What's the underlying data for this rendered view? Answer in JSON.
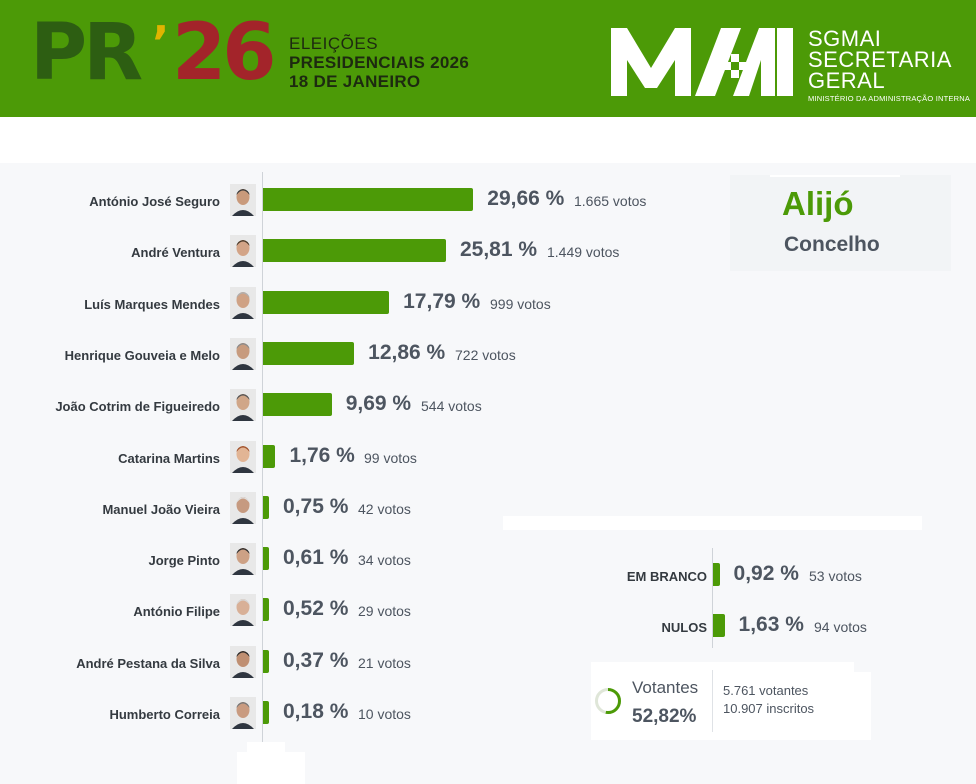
{
  "header": {
    "logo_text": "PR",
    "logo_year": "26",
    "election_line1": "ELEIÇÕES",
    "election_line2": "PRESIDENCIAIS 2026",
    "election_line3": "18 DE JANEIRO",
    "org_line1": "SGMAI",
    "org_line2": "SECRETARIA",
    "org_line3": "GERAL",
    "org_line4": "MINISTÉRIO DA ADMINISTRAÇÃO INTERNA",
    "colors": {
      "header_bg": "#4c9a07",
      "accent_red": "#a3242a",
      "accent_gold": "#e0b400"
    }
  },
  "location": {
    "name": "Alijó",
    "type": "Concelho"
  },
  "chart_data": {
    "type": "bar",
    "orientation": "horizontal",
    "unit": "%",
    "categories": [
      "António José Seguro",
      "André Ventura",
      "Luís Marques Mendes",
      "Henrique Gouveia e Melo",
      "João Cotrim de Figueiredo",
      "Catarina Martins",
      "Manuel João Vieira",
      "Jorge Pinto",
      "António Filipe",
      "André Pestana da Silva",
      "Humberto Correia"
    ],
    "values": [
      29.66,
      25.81,
      17.79,
      12.86,
      9.69,
      1.76,
      0.75,
      0.61,
      0.52,
      0.37,
      0.18
    ],
    "pct_labels": [
      "29,66 %",
      "25,81 %",
      "17,79 %",
      "12,86 %",
      "9,69 %",
      "1,76 %",
      "0,75 %",
      "0,61 %",
      "0,52 %",
      "0,37 %",
      "0,18 %"
    ],
    "votes": [
      1665,
      1449,
      999,
      722,
      544,
      99,
      42,
      34,
      29,
      21,
      10
    ],
    "vote_labels": [
      "1.665 votos",
      "1.449 votos",
      "999 votos",
      "722 votos",
      "544 votos",
      "99 votos",
      "42 votos",
      "34 votos",
      "29 votos",
      "21 votos",
      "10 votos"
    ],
    "bar_color": "#4c9a07",
    "grid": false
  },
  "other_votes": [
    {
      "label": "EM BRANCO",
      "value": 0.92,
      "pct_label": "0,92 %",
      "votes": 53,
      "vote_label": "53 votos"
    },
    {
      "label": "NULOS",
      "value": 1.63,
      "pct_label": "1,63 %",
      "votes": 94,
      "vote_label": "94 votos"
    }
  ],
  "turnout": {
    "label": "Votantes",
    "value": 52.82,
    "pct_label": "52,82%",
    "voters_label": "5.761 votantes",
    "registered_label": "10.907 inscritos"
  }
}
